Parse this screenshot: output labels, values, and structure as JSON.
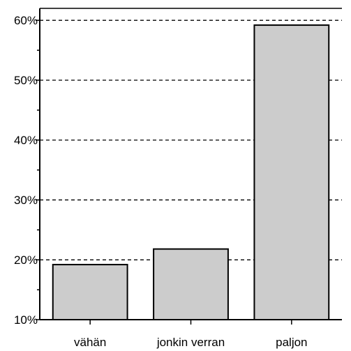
{
  "chart_data": {
    "type": "bar",
    "categories": [
      "vähän",
      "jonkin verran",
      "paljon"
    ],
    "values": [
      19.2,
      21.8,
      59.2
    ],
    "title": "",
    "xlabel": "",
    "ylabel": "",
    "ylim": [
      10,
      62
    ],
    "yticks": [
      10,
      20,
      30,
      40,
      50,
      60
    ],
    "ytick_labels": [
      "10%",
      "20%",
      "30%",
      "40%",
      "50%",
      "60%"
    ],
    "grid": "horizontal dashed",
    "bar_color": "#cccccc",
    "bar_edge_color": "#000000"
  }
}
